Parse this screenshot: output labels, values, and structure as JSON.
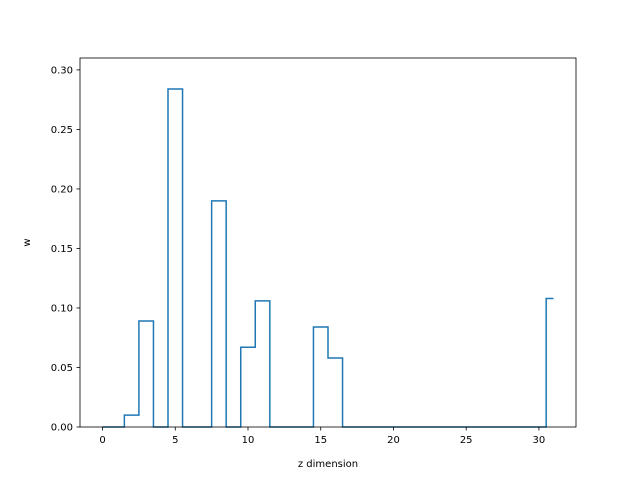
{
  "chart_data": {
    "type": "line",
    "drawstyle": "steps-mid",
    "title": "",
    "xlabel": "z dimension",
    "ylabel": "w",
    "xlim": [
      -1.55,
      32.55
    ],
    "ylim": [
      0.0,
      0.31
    ],
    "xticks": [
      0,
      5,
      10,
      15,
      20,
      25,
      30
    ],
    "yticks": [
      0.0,
      0.05,
      0.1,
      0.15,
      0.2,
      0.25,
      0.3
    ],
    "xtick_labels": [
      "0",
      "5",
      "10",
      "15",
      "20",
      "25",
      "30"
    ],
    "ytick_labels": [
      "0.00",
      "0.05",
      "0.10",
      "0.15",
      "0.20",
      "0.25",
      "0.30"
    ],
    "grid": false,
    "series": [
      {
        "color": "#1f77b4",
        "x": [
          0,
          1,
          2,
          3,
          4,
          5,
          6,
          7,
          8,
          9,
          10,
          11,
          12,
          13,
          14,
          15,
          16,
          17,
          18,
          19,
          20,
          21,
          22,
          23,
          24,
          25,
          26,
          27,
          28,
          29,
          30,
          31
        ],
        "y": [
          0,
          0,
          0.01,
          0.089,
          0,
          0.284,
          0,
          0,
          0.19,
          0,
          0.067,
          0.106,
          0,
          0,
          0,
          0.084,
          0.058,
          0,
          0,
          0,
          0,
          0,
          0,
          0,
          0,
          0,
          0,
          0,
          0,
          0,
          0,
          0.108
        ]
      }
    ]
  }
}
